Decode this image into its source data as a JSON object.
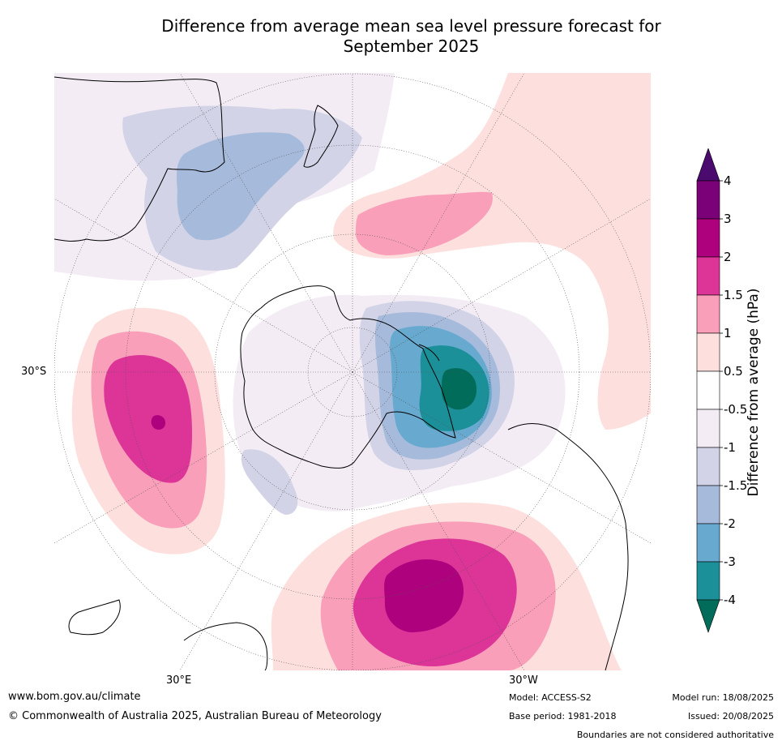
{
  "title_line1": "Difference from average mean sea level pressure forecast for",
  "title_line2": "September 2025",
  "map": {
    "projection": "south-polar-stereographic",
    "lat_label": "30°S",
    "lon_label_left": "30°E",
    "lon_label_right": "30°W"
  },
  "colorbar": {
    "title": "Difference from average (hPa)",
    "tick_labels": [
      "-4",
      "-3",
      "-2",
      "-1.5",
      "-1",
      "-0.5",
      "0.5",
      "1",
      "1.5",
      "2",
      "3",
      "4"
    ],
    "colors": {
      "over": "#4a0a6e",
      "3_4": "#7a0177",
      "2_3": "#ae017e",
      "1.5_2": "#dd3497",
      "1_1.5": "#f99fba",
      "0.5_1": "#fde0dd",
      "-0.5_0.5": "#ffffff",
      "-1_-0.5": "#f3ecf5",
      "-1.5_-1": "#d2d3e6",
      "-2_-1.5": "#a6bbdb",
      "-3_-2": "#67a9cf",
      "-4_-3": "#1c9099",
      "under": "#016c59"
    }
  },
  "footer": {
    "url": "www.bom.gov.au/climate",
    "copyright": "© Commonwealth of Australia 2025, Australian Bureau of Meteorology",
    "model": "Model: ACCESS-S2",
    "base_period": "Base period: 1981-2018",
    "model_run": "Model run: 18/08/2025",
    "issued": "Issued: 20/08/2025",
    "disclaimer": "Boundaries are not considered authoritative"
  }
}
